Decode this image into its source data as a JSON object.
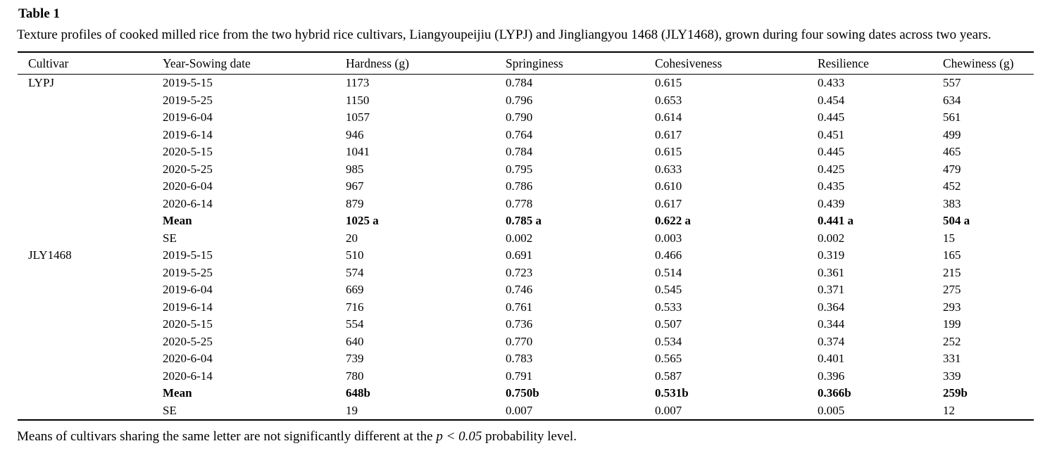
{
  "title": "Table 1",
  "caption": "Texture profiles of cooked milled rice from the two hybrid rice cultivars, Liangyoupeijiu (LYPJ) and Jingliangyou 1468 (JLY1468), grown during four sowing dates across two years.",
  "chart_data": {
    "type": "table",
    "title": "Table 1",
    "columns": [
      "Cultivar",
      "Year-Sowing date",
      "Hardness (g)",
      "Springiness",
      "Cohesiveness",
      "Resilience",
      "Chewiness (g)"
    ],
    "rows": [
      {
        "cells": [
          "LYPJ",
          "2019-5-15",
          "1173",
          "0.784",
          "0.615",
          "0.433",
          "557"
        ],
        "bold": false
      },
      {
        "cells": [
          "",
          "2019-5-25",
          "1150",
          "0.796",
          "0.653",
          "0.454",
          "634"
        ],
        "bold": false
      },
      {
        "cells": [
          "",
          "2019-6-04",
          "1057",
          "0.790",
          "0.614",
          "0.445",
          "561"
        ],
        "bold": false
      },
      {
        "cells": [
          "",
          "2019-6-14",
          "946",
          "0.764",
          "0.617",
          "0.451",
          "499"
        ],
        "bold": false
      },
      {
        "cells": [
          "",
          "2020-5-15",
          "1041",
          "0.784",
          "0.615",
          "0.445",
          "465"
        ],
        "bold": false
      },
      {
        "cells": [
          "",
          "2020-5-25",
          "985",
          "0.795",
          "0.633",
          "0.425",
          "479"
        ],
        "bold": false
      },
      {
        "cells": [
          "",
          "2020-6-04",
          "967",
          "0.786",
          "0.610",
          "0.435",
          "452"
        ],
        "bold": false
      },
      {
        "cells": [
          "",
          "2020-6-14",
          "879",
          "0.778",
          "0.617",
          "0.439",
          "383"
        ],
        "bold": false
      },
      {
        "cells": [
          "",
          "Mean",
          "1025 a",
          "0.785 a",
          "0.622 a",
          "0.441 a",
          "504 a"
        ],
        "bold": true
      },
      {
        "cells": [
          "",
          "SE",
          "20",
          "0.002",
          "0.003",
          "0.002",
          "15"
        ],
        "bold": false
      },
      {
        "cells": [
          "JLY1468",
          "2019-5-15",
          "510",
          "0.691",
          "0.466",
          "0.319",
          "165"
        ],
        "bold": false
      },
      {
        "cells": [
          "",
          "2019-5-25",
          "574",
          "0.723",
          "0.514",
          "0.361",
          "215"
        ],
        "bold": false
      },
      {
        "cells": [
          "",
          "2019-6-04",
          "669",
          "0.746",
          "0.545",
          "0.371",
          "275"
        ],
        "bold": false
      },
      {
        "cells": [
          "",
          "2019-6-14",
          "716",
          "0.761",
          "0.533",
          "0.364",
          "293"
        ],
        "bold": false
      },
      {
        "cells": [
          "",
          "2020-5-15",
          "554",
          "0.736",
          "0.507",
          "0.344",
          "199"
        ],
        "bold": false
      },
      {
        "cells": [
          "",
          "2020-5-25",
          "640",
          "0.770",
          "0.534",
          "0.374",
          "252"
        ],
        "bold": false
      },
      {
        "cells": [
          "",
          "2020-6-04",
          "739",
          "0.783",
          "0.565",
          "0.401",
          "331"
        ],
        "bold": false
      },
      {
        "cells": [
          "",
          "2020-6-14",
          "780",
          "0.791",
          "0.587",
          "0.396",
          "339"
        ],
        "bold": false
      },
      {
        "cells": [
          "",
          "Mean",
          "648b",
          "0.750b",
          "0.531b",
          "0.366b",
          "259b"
        ],
        "bold": true
      },
      {
        "cells": [
          "",
          "SE",
          "19",
          "0.007",
          "0.007",
          "0.005",
          "12"
        ],
        "bold": false
      }
    ]
  },
  "footnote": {
    "prefix": "Means of cultivars sharing the same letter are not significantly different at the ",
    "italic": "p < 0.05",
    "suffix": " probability level."
  }
}
